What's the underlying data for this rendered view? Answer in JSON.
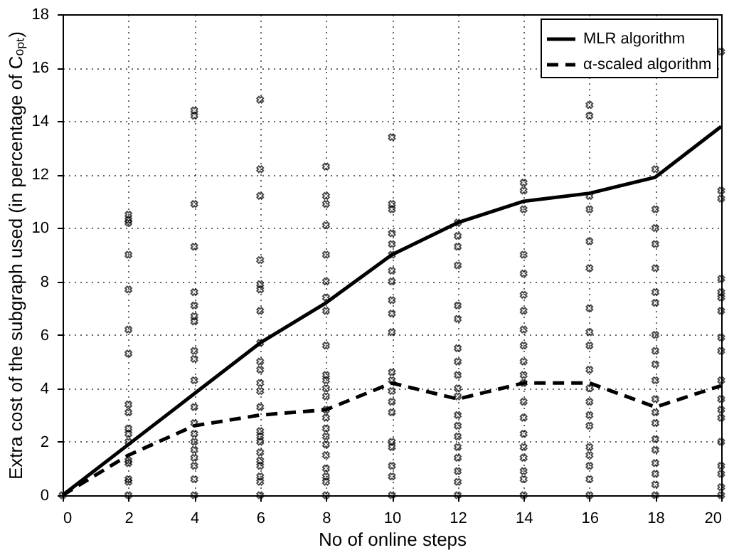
{
  "chart_data": {
    "type": "line",
    "xlabel": "No of online steps",
    "ylabel": "Extra cost of the subgraph used (in percentage of Cₒₚₜ)",
    "xlim": [
      0,
      20
    ],
    "ylim": [
      0,
      18
    ],
    "xticks": [
      0,
      2,
      4,
      6,
      8,
      10,
      12,
      14,
      16,
      18,
      20
    ],
    "yticks": [
      0,
      2,
      4,
      6,
      8,
      10,
      12,
      14,
      16,
      18
    ],
    "grid": true,
    "legend": "top right",
    "series": [
      {
        "type": "scatter",
        "color": "#000000",
        "marker": "cross",
        "x": [
          0,
          2,
          2,
          2,
          2,
          2,
          2,
          2,
          2,
          2,
          2,
          2,
          2,
          2,
          2,
          2,
          2,
          2,
          4,
          4,
          4,
          4,
          4,
          4,
          4,
          4,
          4,
          4,
          4,
          4,
          4,
          4,
          4,
          4,
          4,
          4,
          4,
          4,
          6,
          6,
          6,
          6,
          6,
          6,
          6,
          6,
          6,
          6,
          6,
          6,
          6,
          6,
          6,
          6,
          6,
          6,
          6,
          6,
          6,
          6,
          8,
          8,
          8,
          8,
          8,
          8,
          8,
          8,
          8,
          8,
          8,
          8,
          8,
          8,
          8,
          8,
          8,
          8,
          8,
          8,
          8,
          8,
          8,
          10,
          10,
          10,
          10,
          10,
          10,
          10,
          10,
          10,
          10,
          10,
          10,
          10,
          10,
          10,
          10,
          10,
          10,
          10,
          10,
          10,
          12,
          12,
          12,
          12,
          12,
          12,
          12,
          12,
          12,
          12,
          12,
          12,
          12,
          12,
          12,
          12,
          12,
          12,
          12,
          14,
          14,
          14,
          14,
          14,
          14,
          14,
          14,
          14,
          14,
          14,
          14,
          14,
          14,
          14,
          14,
          14,
          14,
          14,
          14,
          16,
          16,
          16,
          16,
          16,
          16,
          16,
          16,
          16,
          16,
          16,
          16,
          16,
          16,
          16,
          16,
          16,
          16,
          16,
          18,
          18,
          18,
          18,
          18,
          18,
          18,
          18,
          18,
          18,
          18,
          18,
          18,
          18,
          18,
          18,
          18,
          18,
          18,
          18,
          20,
          20,
          20,
          20,
          20,
          20,
          20,
          20,
          20,
          20,
          20,
          20,
          20,
          20,
          20,
          20,
          20,
          20
        ],
        "values": [
          0,
          10.5,
          10.3,
          10.2,
          9.0,
          7.7,
          6.2,
          5.3,
          3.4,
          3.1,
          2.5,
          2.3,
          2.0,
          1.3,
          1.2,
          0.6,
          0.5,
          0,
          14.4,
          14.2,
          10.9,
          9.3,
          7.6,
          7.1,
          6.7,
          6.5,
          5.4,
          5.1,
          4.3,
          3.3,
          2.7,
          2.3,
          2.0,
          1.7,
          1.4,
          1.1,
          0.6,
          0,
          14.8,
          12.2,
          11.2,
          8.8,
          7.9,
          7.7,
          6.9,
          5.7,
          5.0,
          4.7,
          4.2,
          3.9,
          3.3,
          2.4,
          2.2,
          2.0,
          1.6,
          1.3,
          1.1,
          0.7,
          0.5,
          0,
          12.3,
          11.2,
          10.9,
          10.1,
          9.0,
          8.0,
          7.4,
          6.9,
          5.6,
          4.5,
          4.3,
          4.0,
          3.7,
          3.2,
          2.9,
          2.5,
          2.2,
          1.9,
          1.5,
          1.0,
          0.7,
          0.5,
          0,
          13.4,
          10.9,
          10.7,
          9.8,
          9.4,
          9.0,
          8.4,
          8.0,
          7.3,
          6.8,
          6.1,
          4.6,
          4.3,
          3.9,
          3.5,
          3.1,
          2.0,
          1.8,
          1.1,
          0.7,
          0,
          10.2,
          9.7,
          9.3,
          8.6,
          7.1,
          6.6,
          5.5,
          5.0,
          4.5,
          4.0,
          3.7,
          3.0,
          2.6,
          2.2,
          1.8,
          1.4,
          0.9,
          0.5,
          0,
          11.7,
          11.4,
          10.7,
          9.0,
          8.3,
          7.5,
          6.9,
          6.2,
          5.6,
          5.0,
          4.5,
          4.2,
          3.5,
          2.9,
          2.3,
          1.8,
          1.4,
          0.9,
          0.6,
          0,
          14.6,
          14.2,
          11.2,
          10.7,
          9.5,
          8.5,
          7.0,
          6.1,
          5.6,
          4.7,
          4.0,
          3.5,
          3.0,
          2.6,
          1.8,
          1.5,
          1.1,
          0.6,
          0,
          12.2,
          10.7,
          10.0,
          9.4,
          8.5,
          7.6,
          7.2,
          6.0,
          5.4,
          4.9,
          4.3,
          3.6,
          3.1,
          2.7,
          2.1,
          1.7,
          1.2,
          0.8,
          0.4,
          0,
          16.6,
          11.4,
          11.1,
          8.1,
          7.6,
          7.4,
          6.9,
          5.9,
          5.4,
          4.3,
          3.6,
          3.2,
          2.9,
          2.0,
          1.1,
          0.8,
          0.3,
          0
        ]
      },
      {
        "type": "line",
        "name": "MLR algorithm",
        "color": "#000000",
        "line_style": "solid",
        "x": [
          0,
          2,
          4,
          6,
          8,
          10,
          12,
          14,
          16,
          18,
          20
        ],
        "values": [
          0,
          1.9,
          3.8,
          5.7,
          7.2,
          9.0,
          10.2,
          11.0,
          11.3,
          11.9,
          13.8
        ]
      },
      {
        "name": "α-scaled algorithm",
        "color": "#000000",
        "line_style": "dashed",
        "x": [
          0,
          2,
          4,
          6,
          8,
          10,
          12,
          14,
          16,
          18,
          20
        ],
        "values": [
          0,
          1.5,
          2.6,
          3.0,
          3.2,
          4.2,
          3.6,
          4.2,
          4.2,
          3.3,
          4.1
        ]
      }
    ]
  }
}
